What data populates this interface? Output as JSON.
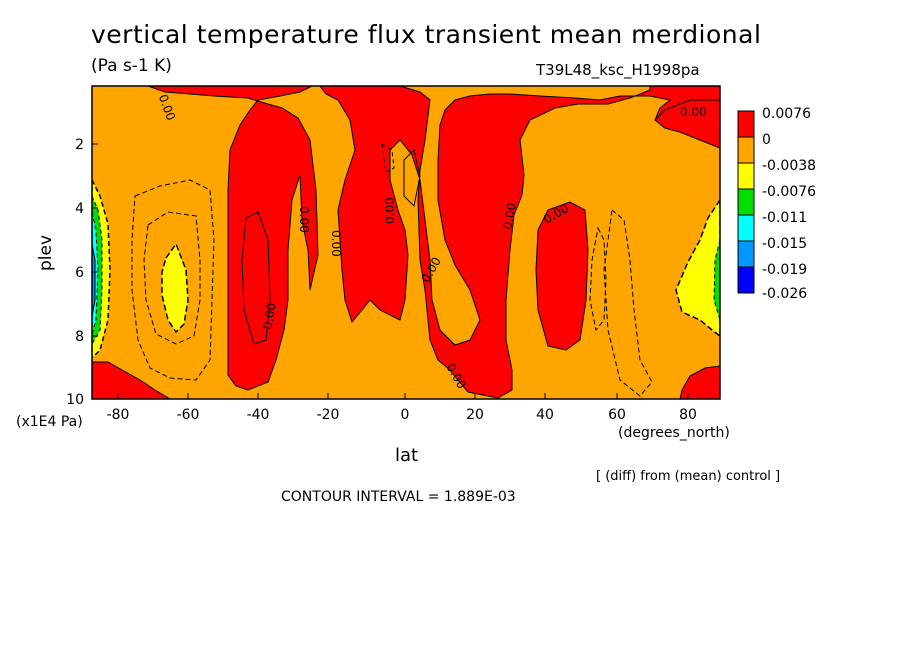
{
  "chart_data": {
    "type": "heatmap",
    "title": "vertical temperature flux transient mean merdional",
    "units": "(Pa s-1 K)",
    "run_id": "T39L48_ksc_H1998pa",
    "xlabel": "lat",
    "xunit": "(degrees_north)",
    "ylabel": "plev",
    "yunit": "(x1E4 Pa)",
    "note": "[ (diff) from (mean) control ]",
    "contour_interval_text": "CONTOUR INTERVAL = 1.889E-03",
    "xlim": [
      -90,
      90
    ],
    "ylim": [
      10,
      0
    ],
    "x_ticks": [
      "-80",
      "-60",
      "-40",
      "-20",
      "0",
      "20",
      "40",
      "60",
      "80"
    ],
    "y_ticks": [
      "2",
      "4",
      "6",
      "8",
      "10"
    ],
    "colorbar": {
      "labels": [
        "0.0076",
        "0",
        "-0.0038",
        "-0.0076",
        "-0.011",
        "-0.015",
        "-0.019",
        "-0.026"
      ],
      "colors": [
        "#ff0000",
        "#ffa500",
        "#ffff00",
        "#00dd00",
        "#00ffff",
        "#0099ff",
        "#0000ff"
      ]
    },
    "contour_labels": [
      "0.00",
      "0.00",
      "0.00",
      "0.00",
      "0.00",
      "0.00",
      "0.00",
      "0.00",
      "0.00",
      "0.00",
      "0.00"
    ],
    "regions": [
      {
        "value": "0 to 0.0076",
        "color": "#ff0000",
        "lat_range": [
          -52,
          -30
        ],
        "plev_range": [
          1,
          9.5
        ]
      },
      {
        "value": "0 to 0.0076",
        "color": "#ff0000",
        "lat_range": [
          -30,
          -20
        ],
        "plev_range": [
          1,
          8
        ]
      },
      {
        "value": "0 to 0.0076",
        "color": "#ff0000",
        "lat_range": [
          -10,
          -2
        ],
        "plev_range": [
          0,
          4
        ]
      },
      {
        "value": "0 to 0.0076",
        "color": "#ff0000",
        "lat_range": [
          5,
          32
        ],
        "plev_range": [
          1,
          9.5
        ]
      },
      {
        "value": "0 to 0.0076",
        "color": "#ff0000",
        "lat_range": [
          36,
          52
        ],
        "plev_range": [
          3.5,
          7.5
        ]
      },
      {
        "value": "0 to 0.0076",
        "color": "#ff0000",
        "lat_range": [
          70,
          90
        ],
        "plev_range": [
          0,
          3
        ]
      },
      {
        "value": "0 to 0.0076",
        "color": "#ff0000",
        "lat_range": [
          -90,
          -60
        ],
        "plev_range": [
          9,
          10
        ]
      },
      {
        "value": "-0.0038 to -0.0076",
        "color": "#ffff00",
        "lat_range": [
          -70,
          -62
        ],
        "plev_range": [
          5.5,
          7.5
        ]
      },
      {
        "value": "-0.0038 to -0.0076",
        "color": "#ffff00",
        "lat_range": [
          78,
          90
        ],
        "plev_range": [
          5.5,
          8
        ]
      },
      {
        "value": "-0.0076 to -0.026",
        "color": "#00ffff",
        "lat_range": [
          -90,
          -87
        ],
        "plev_range": [
          4,
          8
        ]
      }
    ]
  }
}
